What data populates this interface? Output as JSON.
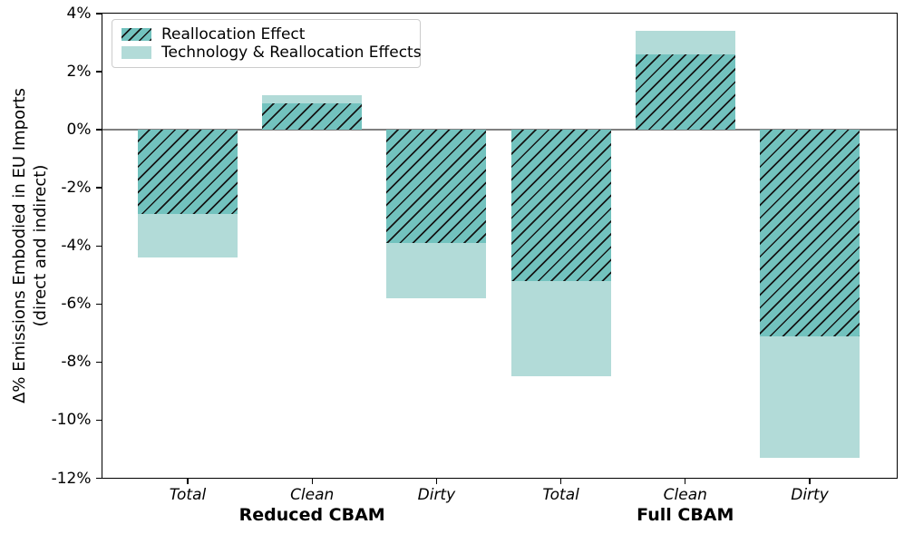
{
  "figure": {
    "background": "#ffffff"
  },
  "chart_data": {
    "type": "bar",
    "title": "",
    "xlabel": "",
    "ylabel_lines": [
      "Δ% Emissions Embodied in EU Imports",
      "(direct and indirect)"
    ],
    "ylim": [
      -12,
      4
    ],
    "grid": false,
    "zero_line": true,
    "legend_position": "upper-left",
    "yticks": [
      {
        "value": 4,
        "label": "4%"
      },
      {
        "value": 2,
        "label": "2%"
      },
      {
        "value": 0,
        "label": "0%"
      },
      {
        "value": -2,
        "label": "-2%"
      },
      {
        "value": -4,
        "label": "-4%"
      },
      {
        "value": -6,
        "label": "-6%"
      },
      {
        "value": -8,
        "label": "-8%"
      },
      {
        "value": -10,
        "label": "-10%"
      },
      {
        "value": -12,
        "label": "-12%"
      }
    ],
    "categories": [
      "Total",
      "Clean",
      "Dirty",
      "Total",
      "Clean",
      "Dirty"
    ],
    "groups": [
      {
        "label": "Reduced CBAM",
        "bar_indices": [
          0,
          1,
          2
        ]
      },
      {
        "label": "Full CBAM",
        "bar_indices": [
          3,
          4,
          5
        ]
      }
    ],
    "series": [
      {
        "name": "Technology & Reallocation Effects",
        "style": "solid",
        "color": "#b2dbd8",
        "values": [
          -4.4,
          1.2,
          -5.8,
          -8.5,
          3.4,
          -11.3
        ]
      },
      {
        "name": "Reallocation Effect",
        "style": "hatched",
        "color": "#72c2be",
        "hatch": "/",
        "hatch_color": "#141414",
        "values": [
          -2.9,
          0.9,
          -3.9,
          -5.2,
          2.6,
          -7.1
        ]
      }
    ],
    "legend": {
      "items": [
        {
          "label": "Reallocation Effect",
          "style": "hatched"
        },
        {
          "label": "Technology & Reallocation Effects",
          "style": "solid"
        }
      ]
    },
    "colors": {
      "spine": "#000000",
      "zero_line": "#808080",
      "text": "#000000"
    }
  }
}
